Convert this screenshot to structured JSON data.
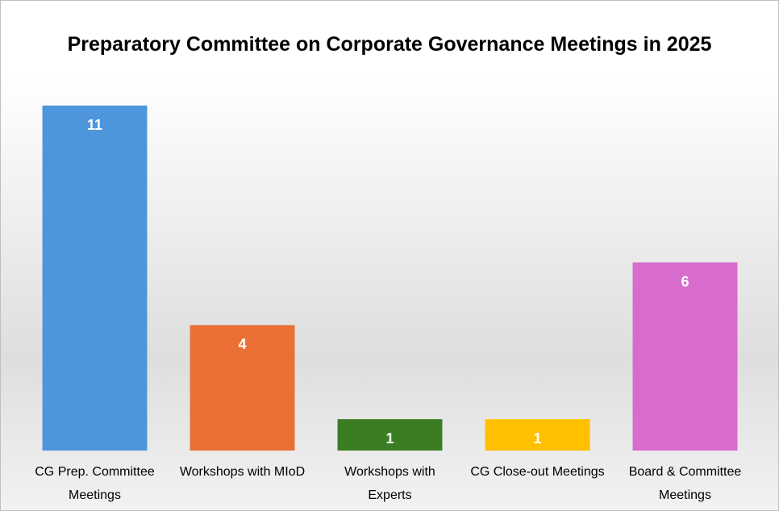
{
  "chart_data": {
    "type": "bar",
    "title": "Preparatory Committee on Corporate Governance Meetings in 2025",
    "categories": [
      "CG Prep. Committee Meetings",
      "Workshops with MIoD",
      "Workshops with Experts",
      "CG Close-out Meetings",
      "Board & Committee Meetings"
    ],
    "values": [
      11,
      4,
      1,
      1,
      6
    ],
    "colors": [
      "#4e96dc",
      "#ea7035",
      "#3a7d22",
      "#ffc000",
      "#d76ccc"
    ],
    "ylim": [
      0,
      11
    ]
  }
}
